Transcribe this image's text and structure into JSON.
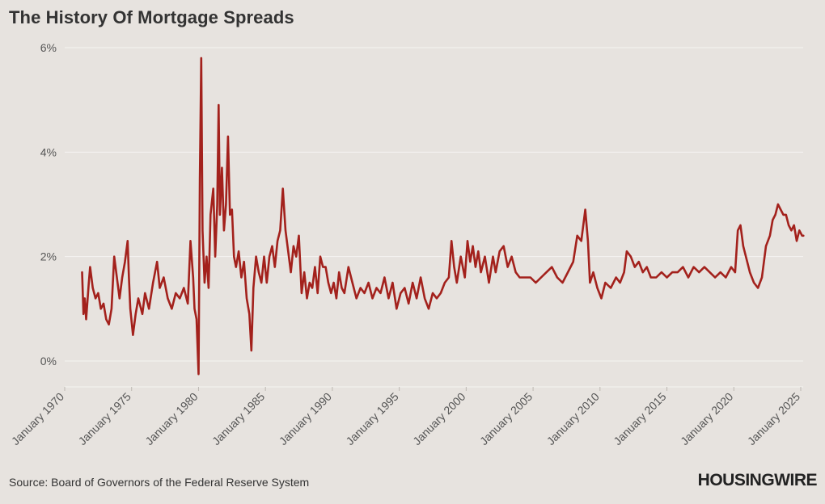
{
  "header": {
    "title": "The History Of Mortgage Spreads"
  },
  "footer": {
    "source": "Source: Board of Governors of the Federal Reserve System",
    "logo": "HOUSINGWIRE"
  },
  "colors": {
    "background": "#e7e3df",
    "line": "#a3211c",
    "grid": "#f6f4f2",
    "text": "#333333"
  },
  "chart_data": {
    "type": "line",
    "title": "The History Of Mortgage Spreads",
    "xlabel": "",
    "ylabel": "",
    "ylim": [
      -0.5,
      6.0
    ],
    "xlim": [
      1970.0,
      2025.25
    ],
    "grid": true,
    "yticks": [
      0,
      2,
      4,
      6
    ],
    "ytick_labels": [
      "0%",
      "2%",
      "4%",
      "6%"
    ],
    "xticks": [
      1970,
      1975,
      1980,
      1985,
      1990,
      1995,
      2000,
      2005,
      2010,
      2015,
      2020,
      2025
    ],
    "xtick_labels": [
      "January 1970",
      "January 1975",
      "January 1980",
      "January 1985",
      "January 1990",
      "January 1995",
      "January 2000",
      "January 2005",
      "January 2010",
      "January 2015",
      "January 2020",
      "January 2025"
    ],
    "series": [
      {
        "values": [
          [
            1971.3,
            1.7
          ],
          [
            1971.4,
            0.9
          ],
          [
            1971.5,
            1.2
          ],
          [
            1971.6,
            0.8
          ],
          [
            1971.8,
            1.5
          ],
          [
            1971.9,
            1.8
          ],
          [
            1972.1,
            1.4
          ],
          [
            1972.3,
            1.2
          ],
          [
            1972.5,
            1.3
          ],
          [
            1972.7,
            1.0
          ],
          [
            1972.9,
            1.1
          ],
          [
            1973.1,
            0.8
          ],
          [
            1973.3,
            0.7
          ],
          [
            1973.5,
            1.0
          ],
          [
            1973.7,
            2.0
          ],
          [
            1973.9,
            1.6
          ],
          [
            1974.1,
            1.2
          ],
          [
            1974.3,
            1.6
          ],
          [
            1974.5,
            1.9
          ],
          [
            1974.7,
            2.3
          ],
          [
            1974.8,
            1.6
          ],
          [
            1974.9,
            1.0
          ],
          [
            1975.1,
            0.5
          ],
          [
            1975.3,
            0.9
          ],
          [
            1975.5,
            1.2
          ],
          [
            1975.8,
            0.9
          ],
          [
            1976.0,
            1.3
          ],
          [
            1976.3,
            1.0
          ],
          [
            1976.6,
            1.5
          ],
          [
            1976.9,
            1.9
          ],
          [
            1977.1,
            1.4
          ],
          [
            1977.4,
            1.6
          ],
          [
            1977.7,
            1.2
          ],
          [
            1978.0,
            1.0
          ],
          [
            1978.3,
            1.3
          ],
          [
            1978.6,
            1.2
          ],
          [
            1978.9,
            1.4
          ],
          [
            1979.2,
            1.1
          ],
          [
            1979.4,
            2.3
          ],
          [
            1979.6,
            1.6
          ],
          [
            1979.7,
            1.0
          ],
          [
            1979.85,
            0.8
          ],
          [
            1980.0,
            -0.25
          ],
          [
            1980.1,
            3.5
          ],
          [
            1980.2,
            5.8
          ],
          [
            1980.3,
            2.5
          ],
          [
            1980.45,
            1.5
          ],
          [
            1980.6,
            2.0
          ],
          [
            1980.75,
            1.4
          ],
          [
            1980.9,
            2.8
          ],
          [
            1981.1,
            3.3
          ],
          [
            1981.25,
            2.0
          ],
          [
            1981.4,
            3.0
          ],
          [
            1981.5,
            4.9
          ],
          [
            1981.6,
            2.8
          ],
          [
            1981.75,
            3.7
          ],
          [
            1981.9,
            2.5
          ],
          [
            1982.05,
            3.0
          ],
          [
            1982.2,
            4.3
          ],
          [
            1982.35,
            2.8
          ],
          [
            1982.5,
            2.9
          ],
          [
            1982.65,
            2.0
          ],
          [
            1982.8,
            1.8
          ],
          [
            1983.0,
            2.1
          ],
          [
            1983.2,
            1.6
          ],
          [
            1983.4,
            1.9
          ],
          [
            1983.6,
            1.2
          ],
          [
            1983.8,
            0.9
          ],
          [
            1983.95,
            0.2
          ],
          [
            1984.1,
            1.4
          ],
          [
            1984.3,
            2.0
          ],
          [
            1984.5,
            1.7
          ],
          [
            1984.7,
            1.5
          ],
          [
            1984.9,
            2.0
          ],
          [
            1985.1,
            1.5
          ],
          [
            1985.3,
            2.0
          ],
          [
            1985.5,
            2.2
          ],
          [
            1985.7,
            1.8
          ],
          [
            1985.9,
            2.3
          ],
          [
            1986.1,
            2.5
          ],
          [
            1986.3,
            3.3
          ],
          [
            1986.5,
            2.5
          ],
          [
            1986.7,
            2.1
          ],
          [
            1986.9,
            1.7
          ],
          [
            1987.1,
            2.2
          ],
          [
            1987.3,
            2.0
          ],
          [
            1987.5,
            2.4
          ],
          [
            1987.7,
            1.3
          ],
          [
            1987.9,
            1.7
          ],
          [
            1988.1,
            1.2
          ],
          [
            1988.3,
            1.5
          ],
          [
            1988.5,
            1.4
          ],
          [
            1988.7,
            1.8
          ],
          [
            1988.9,
            1.3
          ],
          [
            1989.1,
            2.0
          ],
          [
            1989.3,
            1.8
          ],
          [
            1989.5,
            1.8
          ],
          [
            1989.7,
            1.5
          ],
          [
            1989.9,
            1.3
          ],
          [
            1990.1,
            1.5
          ],
          [
            1990.3,
            1.2
          ],
          [
            1990.5,
            1.7
          ],
          [
            1990.7,
            1.4
          ],
          [
            1990.9,
            1.3
          ],
          [
            1991.2,
            1.8
          ],
          [
            1991.5,
            1.5
          ],
          [
            1991.8,
            1.2
          ],
          [
            1992.1,
            1.4
          ],
          [
            1992.4,
            1.3
          ],
          [
            1992.7,
            1.5
          ],
          [
            1993.0,
            1.2
          ],
          [
            1993.3,
            1.4
          ],
          [
            1993.6,
            1.3
          ],
          [
            1993.9,
            1.6
          ],
          [
            1994.2,
            1.2
          ],
          [
            1994.5,
            1.5
          ],
          [
            1994.8,
            1.0
          ],
          [
            1995.1,
            1.3
          ],
          [
            1995.4,
            1.4
          ],
          [
            1995.7,
            1.1
          ],
          [
            1996.0,
            1.5
          ],
          [
            1996.3,
            1.2
          ],
          [
            1996.6,
            1.6
          ],
          [
            1996.9,
            1.2
          ],
          [
            1997.2,
            1.0
          ],
          [
            1997.5,
            1.3
          ],
          [
            1997.8,
            1.2
          ],
          [
            1998.1,
            1.3
          ],
          [
            1998.4,
            1.5
          ],
          [
            1998.7,
            1.6
          ],
          [
            1998.9,
            2.3
          ],
          [
            1999.1,
            1.8
          ],
          [
            1999.3,
            1.5
          ],
          [
            1999.6,
            2.0
          ],
          [
            1999.9,
            1.6
          ],
          [
            2000.1,
            2.3
          ],
          [
            2000.3,
            1.9
          ],
          [
            2000.5,
            2.2
          ],
          [
            2000.7,
            1.8
          ],
          [
            2000.9,
            2.1
          ],
          [
            2001.1,
            1.7
          ],
          [
            2001.4,
            2.0
          ],
          [
            2001.7,
            1.5
          ],
          [
            2002.0,
            2.0
          ],
          [
            2002.2,
            1.7
          ],
          [
            2002.5,
            2.1
          ],
          [
            2002.8,
            2.2
          ],
          [
            2003.1,
            1.8
          ],
          [
            2003.4,
            2.0
          ],
          [
            2003.7,
            1.7
          ],
          [
            2004.0,
            1.6
          ],
          [
            2004.4,
            1.6
          ],
          [
            2004.8,
            1.6
          ],
          [
            2005.2,
            1.5
          ],
          [
            2005.6,
            1.6
          ],
          [
            2006.0,
            1.7
          ],
          [
            2006.4,
            1.8
          ],
          [
            2006.8,
            1.6
          ],
          [
            2007.2,
            1.5
          ],
          [
            2007.6,
            1.7
          ],
          [
            2008.0,
            1.9
          ],
          [
            2008.3,
            2.4
          ],
          [
            2008.6,
            2.3
          ],
          [
            2008.9,
            2.9
          ],
          [
            2009.1,
            2.3
          ],
          [
            2009.25,
            1.5
          ],
          [
            2009.5,
            1.7
          ],
          [
            2009.8,
            1.4
          ],
          [
            2010.1,
            1.2
          ],
          [
            2010.4,
            1.5
          ],
          [
            2010.8,
            1.4
          ],
          [
            2011.2,
            1.6
          ],
          [
            2011.5,
            1.5
          ],
          [
            2011.8,
            1.7
          ],
          [
            2012.0,
            2.1
          ],
          [
            2012.3,
            2.0
          ],
          [
            2012.6,
            1.8
          ],
          [
            2012.9,
            1.9
          ],
          [
            2013.2,
            1.7
          ],
          [
            2013.5,
            1.8
          ],
          [
            2013.8,
            1.6
          ],
          [
            2014.2,
            1.6
          ],
          [
            2014.6,
            1.7
          ],
          [
            2015.0,
            1.6
          ],
          [
            2015.4,
            1.7
          ],
          [
            2015.8,
            1.7
          ],
          [
            2016.2,
            1.8
          ],
          [
            2016.6,
            1.6
          ],
          [
            2017.0,
            1.8
          ],
          [
            2017.4,
            1.7
          ],
          [
            2017.8,
            1.8
          ],
          [
            2018.2,
            1.7
          ],
          [
            2018.6,
            1.6
          ],
          [
            2019.0,
            1.7
          ],
          [
            2019.4,
            1.6
          ],
          [
            2019.8,
            1.8
          ],
          [
            2020.1,
            1.7
          ],
          [
            2020.3,
            2.5
          ],
          [
            2020.5,
            2.6
          ],
          [
            2020.7,
            2.2
          ],
          [
            2020.9,
            2.0
          ],
          [
            2021.2,
            1.7
          ],
          [
            2021.5,
            1.5
          ],
          [
            2021.8,
            1.4
          ],
          [
            2022.1,
            1.6
          ],
          [
            2022.4,
            2.2
          ],
          [
            2022.7,
            2.4
          ],
          [
            2022.9,
            2.7
          ],
          [
            2023.1,
            2.8
          ],
          [
            2023.3,
            3.0
          ],
          [
            2023.5,
            2.9
          ],
          [
            2023.7,
            2.8
          ],
          [
            2023.9,
            2.8
          ],
          [
            2024.1,
            2.6
          ],
          [
            2024.3,
            2.5
          ],
          [
            2024.5,
            2.6
          ],
          [
            2024.7,
            2.3
          ],
          [
            2024.9,
            2.5
          ],
          [
            2025.1,
            2.4
          ],
          [
            2025.2,
            2.4
          ]
        ]
      }
    ]
  }
}
